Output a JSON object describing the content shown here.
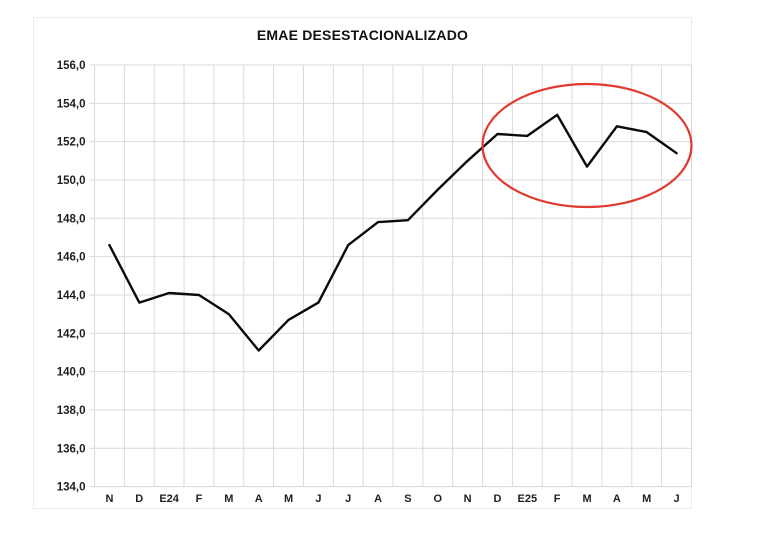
{
  "chart_data": {
    "type": "line",
    "title": "EMAE DESESTACIONALIZADO",
    "categories": [
      "N",
      "D",
      "E24",
      "F",
      "M",
      "A",
      "M",
      "J",
      "J",
      "A",
      "S",
      "O",
      "N",
      "D",
      "E25",
      "F",
      "M",
      "A",
      "M",
      "J"
    ],
    "series": [
      {
        "name": "EMAE desestacionalizado",
        "values": [
          146.6,
          143.6,
          144.1,
          144.0,
          143.0,
          141.1,
          142.7,
          143.6,
          146.6,
          147.8,
          147.9,
          149.5,
          151.0,
          152.4,
          152.3,
          153.4,
          150.7,
          152.8,
          152.5,
          151.4
        ]
      }
    ],
    "ylim": [
      134,
      156
    ],
    "ytick_step": 2,
    "y_tick_labels": [
      "156,0",
      "154,0",
      "152,0",
      "150,0",
      "148,0",
      "146,0",
      "144,0",
      "142,0",
      "140,0",
      "138,0",
      "136,0",
      "134,0"
    ],
    "xlabel": "",
    "ylabel": "",
    "grid": true,
    "legend": "none",
    "line_color": "#0b0b0b",
    "grid_color": "#d9d9d9",
    "label_color": "#1f1f1f",
    "annotation": {
      "shape": "ellipse",
      "color": "#e03b2e",
      "highlighted_categories": [
        "D",
        "E25",
        "F",
        "M",
        "A",
        "M",
        "J"
      ]
    }
  }
}
